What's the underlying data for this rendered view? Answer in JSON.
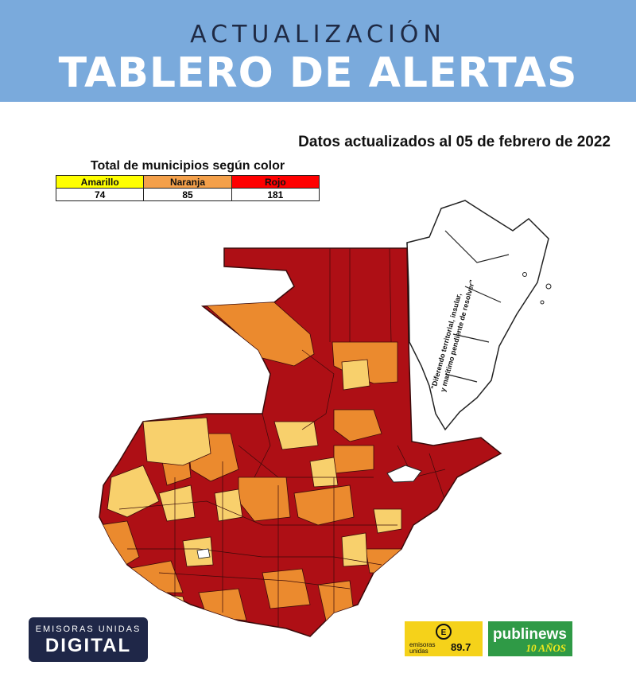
{
  "header": {
    "subtitle": "ACTUALIZACIÓN",
    "title": "TABLERO DE ALERTAS"
  },
  "updated": "Datos actualizados al 05 de febrero de 2022",
  "legend": {
    "title": "Total de municipios según color",
    "columns": [
      {
        "label": "Amarillo",
        "count": "74",
        "color": "#ffff00"
      },
      {
        "label": "Naranja",
        "count": "85",
        "color": "#f4a04a"
      },
      {
        "label": "Rojo",
        "count": "181",
        "color": "#ff0000"
      }
    ]
  },
  "map": {
    "dispute_note_1": "\"Diferendo territorial, insular,",
    "dispute_note_2": "y marítimo pendiente de resolver\"",
    "colors": {
      "red": "#ae0f15",
      "orange": "#eb8a2e",
      "yellow": "#f8d06c"
    }
  },
  "logos": {
    "left_line1": "EMISORAS UNIDAS",
    "left_line2": "DIGITAL",
    "mid_line1": "emisoras unidas",
    "mid_line2": "89.7",
    "right_line1": "publinews",
    "right_line2": "10 AÑOS"
  }
}
